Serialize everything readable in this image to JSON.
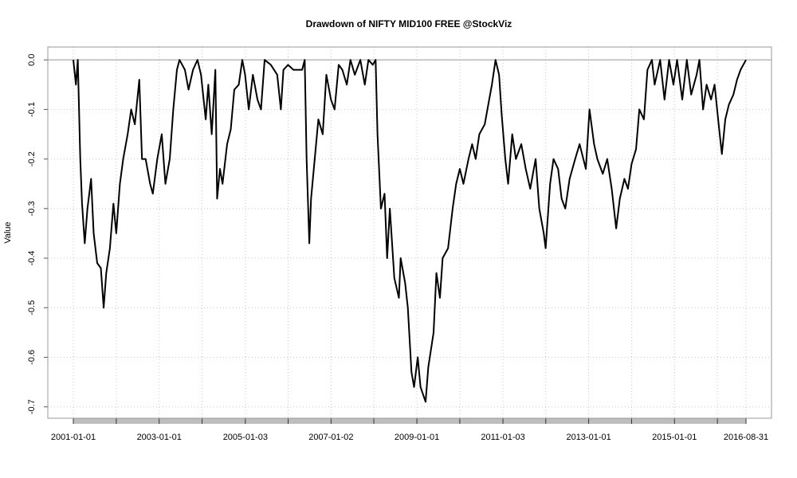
{
  "chart_data": {
    "type": "line",
    "title": "Drawdown of NIFTY MID100 FREE @StockViz",
    "y_label": "Value",
    "x": [
      "2001-01-01",
      "2001-01-23",
      "2001-02-08",
      "2001-03-01",
      "2001-03-16",
      "2001-04-08",
      "2001-05-01",
      "2001-06-01",
      "2001-06-23",
      "2001-07-23",
      "2001-08-23",
      "2001-09-16",
      "2001-10-08",
      "2001-11-08",
      "2001-12-08",
      "2002-01-01",
      "2002-02-01",
      "2002-03-01",
      "2002-04-08",
      "2002-05-08",
      "2002-06-08",
      "2002-07-16",
      "2002-08-08",
      "2002-09-08",
      "2002-10-16",
      "2002-11-08",
      "2002-12-16",
      "2003-01-23",
      "2003-02-23",
      "2003-04-01",
      "2003-05-01",
      "2003-06-01",
      "2003-06-23",
      "2003-08-08",
      "2003-09-08",
      "2003-10-16",
      "2003-11-23",
      "2003-12-23",
      "2004-02-01",
      "2004-02-23",
      "2004-03-23",
      "2004-04-23",
      "2004-05-08",
      "2004-06-01",
      "2004-06-23",
      "2004-08-01",
      "2004-09-01",
      "2004-10-01",
      "2004-11-08",
      "2004-12-08",
      "2005-01-01",
      "2005-02-01",
      "2005-03-08",
      "2005-04-16",
      "2005-05-16",
      "2005-06-16",
      "2005-08-08",
      "2005-10-01",
      "2005-11-01",
      "2005-11-23",
      "2006-01-01",
      "2006-02-16",
      "2006-04-01",
      "2006-05-01",
      "2006-05-23",
      "2006-06-08",
      "2006-07-01",
      "2006-07-16",
      "2006-08-16",
      "2006-09-16",
      "2006-10-23",
      "2006-11-23",
      "2007-01-01",
      "2007-02-01",
      "2007-03-08",
      "2007-04-08",
      "2007-05-16",
      "2007-06-16",
      "2007-07-23",
      "2007-09-08",
      "2007-10-16",
      "2007-11-16",
      "2007-12-23",
      "2008-01-16",
      "2008-02-01",
      "2008-03-01",
      "2008-04-01",
      "2008-04-23",
      "2008-05-16",
      "2008-06-23",
      "2008-08-01",
      "2008-08-16",
      "2008-09-23",
      "2008-10-16",
      "2008-11-16",
      "2008-12-08",
      "2009-01-08",
      "2009-02-01",
      "2009-03-16",
      "2009-04-08",
      "2009-05-23",
      "2009-06-16",
      "2009-07-16",
      "2009-08-08",
      "2009-09-23",
      "2009-11-01",
      "2009-12-01",
      "2010-01-01",
      "2010-02-01",
      "2010-03-16",
      "2010-04-16",
      "2010-05-16",
      "2010-06-16",
      "2010-08-01",
      "2010-09-08",
      "2010-10-01",
      "2010-11-01",
      "2010-12-01",
      "2010-12-23",
      "2011-01-23",
      "2011-02-16",
      "2011-03-23",
      "2011-04-23",
      "2011-06-08",
      "2011-07-16",
      "2011-08-23",
      "2011-10-08",
      "2011-11-08",
      "2011-12-16",
      "2012-01-01",
      "2012-02-08",
      "2012-03-08",
      "2012-04-16",
      "2012-05-16",
      "2012-06-16",
      "2012-07-23",
      "2012-09-08",
      "2012-10-16",
      "2012-12-08",
      "2013-01-08",
      "2013-02-16",
      "2013-03-16",
      "2013-05-01",
      "2013-06-08",
      "2013-07-16",
      "2013-08-23",
      "2013-09-23",
      "2013-11-01",
      "2013-12-01",
      "2014-01-01",
      "2014-02-08",
      "2014-03-08",
      "2014-04-16",
      "2014-05-16",
      "2014-06-23",
      "2014-07-16",
      "2014-09-01",
      "2014-10-08",
      "2014-11-16",
      "2014-12-23",
      "2015-01-23",
      "2015-03-08",
      "2015-04-16",
      "2015-05-23",
      "2015-07-08",
      "2015-08-01",
      "2015-09-01",
      "2015-10-01",
      "2015-11-08",
      "2015-12-08",
      "2016-01-16",
      "2016-02-08",
      "2016-03-08",
      "2016-04-08",
      "2016-05-16",
      "2016-06-16",
      "2016-07-16",
      "2016-08-31"
    ],
    "series": [
      {
        "color": "#000000",
        "values": [
          0,
          -0.05,
          0,
          -0.2,
          -0.29,
          -0.37,
          -0.3,
          -0.24,
          -0.35,
          -0.41,
          -0.42,
          -0.5,
          -0.43,
          -0.38,
          -0.29,
          -0.35,
          -0.25,
          -0.2,
          -0.15,
          -0.1,
          -0.13,
          -0.04,
          -0.2,
          -0.2,
          -0.25,
          -0.27,
          -0.2,
          -0.15,
          -0.25,
          -0.2,
          -0.1,
          -0.02,
          0,
          -0.02,
          -0.06,
          -0.02,
          0,
          -0.03,
          -0.12,
          -0.05,
          -0.15,
          -0.02,
          -0.28,
          -0.22,
          -0.25,
          -0.17,
          -0.14,
          -0.06,
          -0.05,
          0,
          -0.03,
          -0.1,
          -0.03,
          -0.08,
          -0.1,
          0,
          -0.01,
          -0.03,
          -0.1,
          -0.02,
          -0.01,
          -0.02,
          -0.02,
          -0.02,
          0,
          -0.2,
          -0.37,
          -0.28,
          -0.2,
          -0.12,
          -0.15,
          -0.03,
          -0.08,
          -0.1,
          -0.01,
          -0.02,
          -0.05,
          0,
          -0.03,
          0,
          -0.05,
          0,
          -0.01,
          0,
          -0.15,
          -0.3,
          -0.27,
          -0.4,
          -0.3,
          -0.44,
          -0.48,
          -0.4,
          -0.45,
          -0.5,
          -0.63,
          -0.66,
          -0.6,
          -0.66,
          -0.69,
          -0.62,
          -0.55,
          -0.43,
          -0.48,
          -0.4,
          -0.38,
          -0.3,
          -0.25,
          -0.22,
          -0.25,
          -0.2,
          -0.17,
          -0.2,
          -0.15,
          -0.13,
          -0.08,
          -0.05,
          0,
          -0.03,
          -0.11,
          -0.2,
          -0.25,
          -0.15,
          -0.2,
          -0.17,
          -0.22,
          -0.26,
          -0.2,
          -0.3,
          -0.35,
          -0.38,
          -0.25,
          -0.2,
          -0.22,
          -0.28,
          -0.3,
          -0.24,
          -0.2,
          -0.17,
          -0.22,
          -0.1,
          -0.17,
          -0.2,
          -0.23,
          -0.2,
          -0.26,
          -0.34,
          -0.28,
          -0.24,
          -0.26,
          -0.21,
          -0.18,
          -0.1,
          -0.12,
          -0.02,
          0,
          -0.05,
          0,
          -0.08,
          0,
          -0.05,
          0,
          -0.08,
          0,
          -0.07,
          -0.03,
          0,
          -0.1,
          -0.05,
          -0.08,
          -0.05,
          -0.14,
          -0.19,
          -0.12,
          -0.09,
          -0.07,
          -0.04,
          -0.02,
          0
        ]
      }
    ],
    "xlim": [
      "2000-05-29",
      "2017-04-05"
    ],
    "xticks": [
      "2001-01-01",
      "2003-01-01",
      "2005-01-03",
      "2007-01-02",
      "2009-01-01",
      "2011-01-03",
      "2013-01-01",
      "2015-01-01",
      "2016-08-31"
    ],
    "xminorticks": [
      "2002-01-01",
      "2004-01-01",
      "2006-01-02",
      "2008-01-01",
      "2010-01-01",
      "2012-01-02",
      "2014-01-01",
      "2016-01-01"
    ],
    "ylim": [
      -0.723,
      0.026
    ],
    "yticks": [
      {
        "value": 0,
        "label": "0.0"
      },
      -0.1,
      -0.2,
      -0.3,
      -0.4,
      -0.5,
      -0.6,
      -0.7
    ],
    "grid": true
  }
}
